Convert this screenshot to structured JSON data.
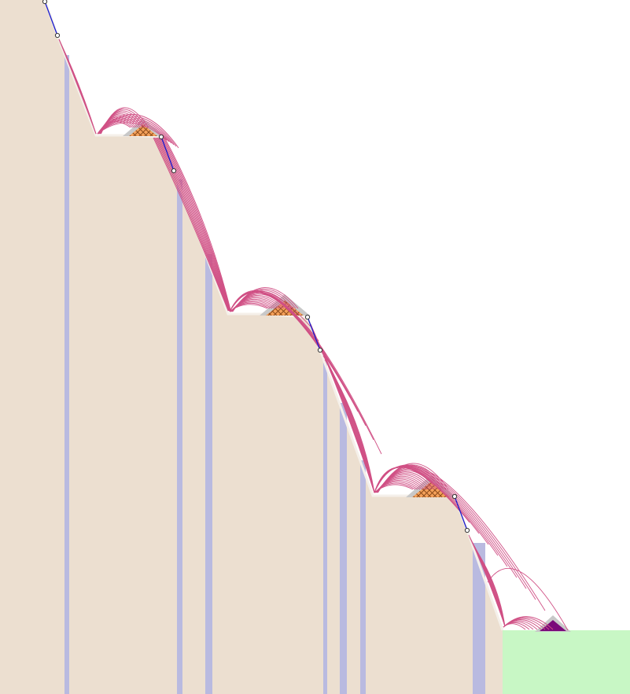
{
  "colors": {
    "background": "#ffffff",
    "slope_fill": "#ecdfd0",
    "slope_edge": "#f5f0ea",
    "stratum_band": "#b9bae0",
    "flat_ground": "#c8f7c5",
    "trajectory": "#d05085",
    "barrier_fill": "#f5a15a",
    "barrier_hatch": "#8a4a1a",
    "barrier_outline": "#c8c8c8",
    "final_barrier": "#7a0a7a",
    "rock_path": "#1a1acc",
    "node_fill": "#ffffff",
    "node_stroke": "#333333"
  },
  "diagram": {
    "type": "rockfall-trajectory-section",
    "benches": 3,
    "barriers": 3,
    "final_barrier": 1,
    "rock_path_segments": 4
  }
}
